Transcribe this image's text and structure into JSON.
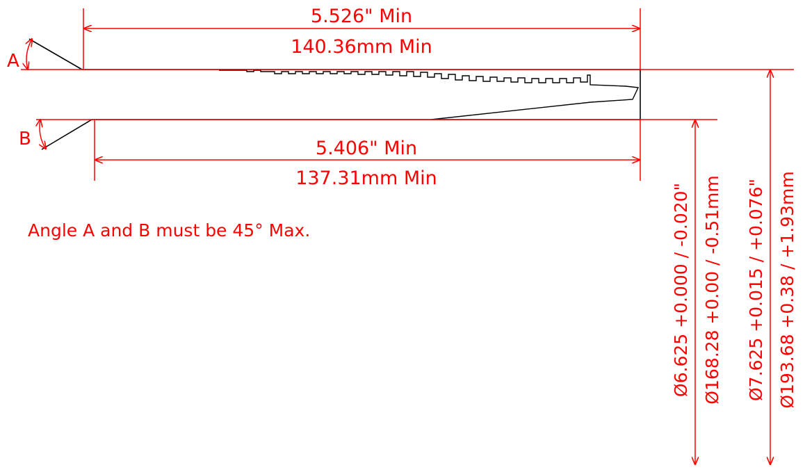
{
  "colors": {
    "dimension": "#ff0000",
    "geometry": "#000000",
    "background": "#ffffff"
  },
  "dimensions": {
    "top_length_in": "5.526\" Min",
    "top_length_mm": "140.36mm Min",
    "bottom_length_in": "5.406\" Min",
    "bottom_length_mm": "137.31mm Min",
    "inner_dia_in": "Ø6.625 +0.000 / -0.020\"",
    "inner_dia_mm": "Ø168.28 +0.00 / -0.51mm",
    "outer_dia_in": "Ø7.625 +0.015 / +0.076\"",
    "outer_dia_mm": "Ø193.68 +0.38 / +1.93mm"
  },
  "angle_labels": {
    "a": "A",
    "b": "B"
  },
  "note": "Angle A and B must be 45° Max."
}
